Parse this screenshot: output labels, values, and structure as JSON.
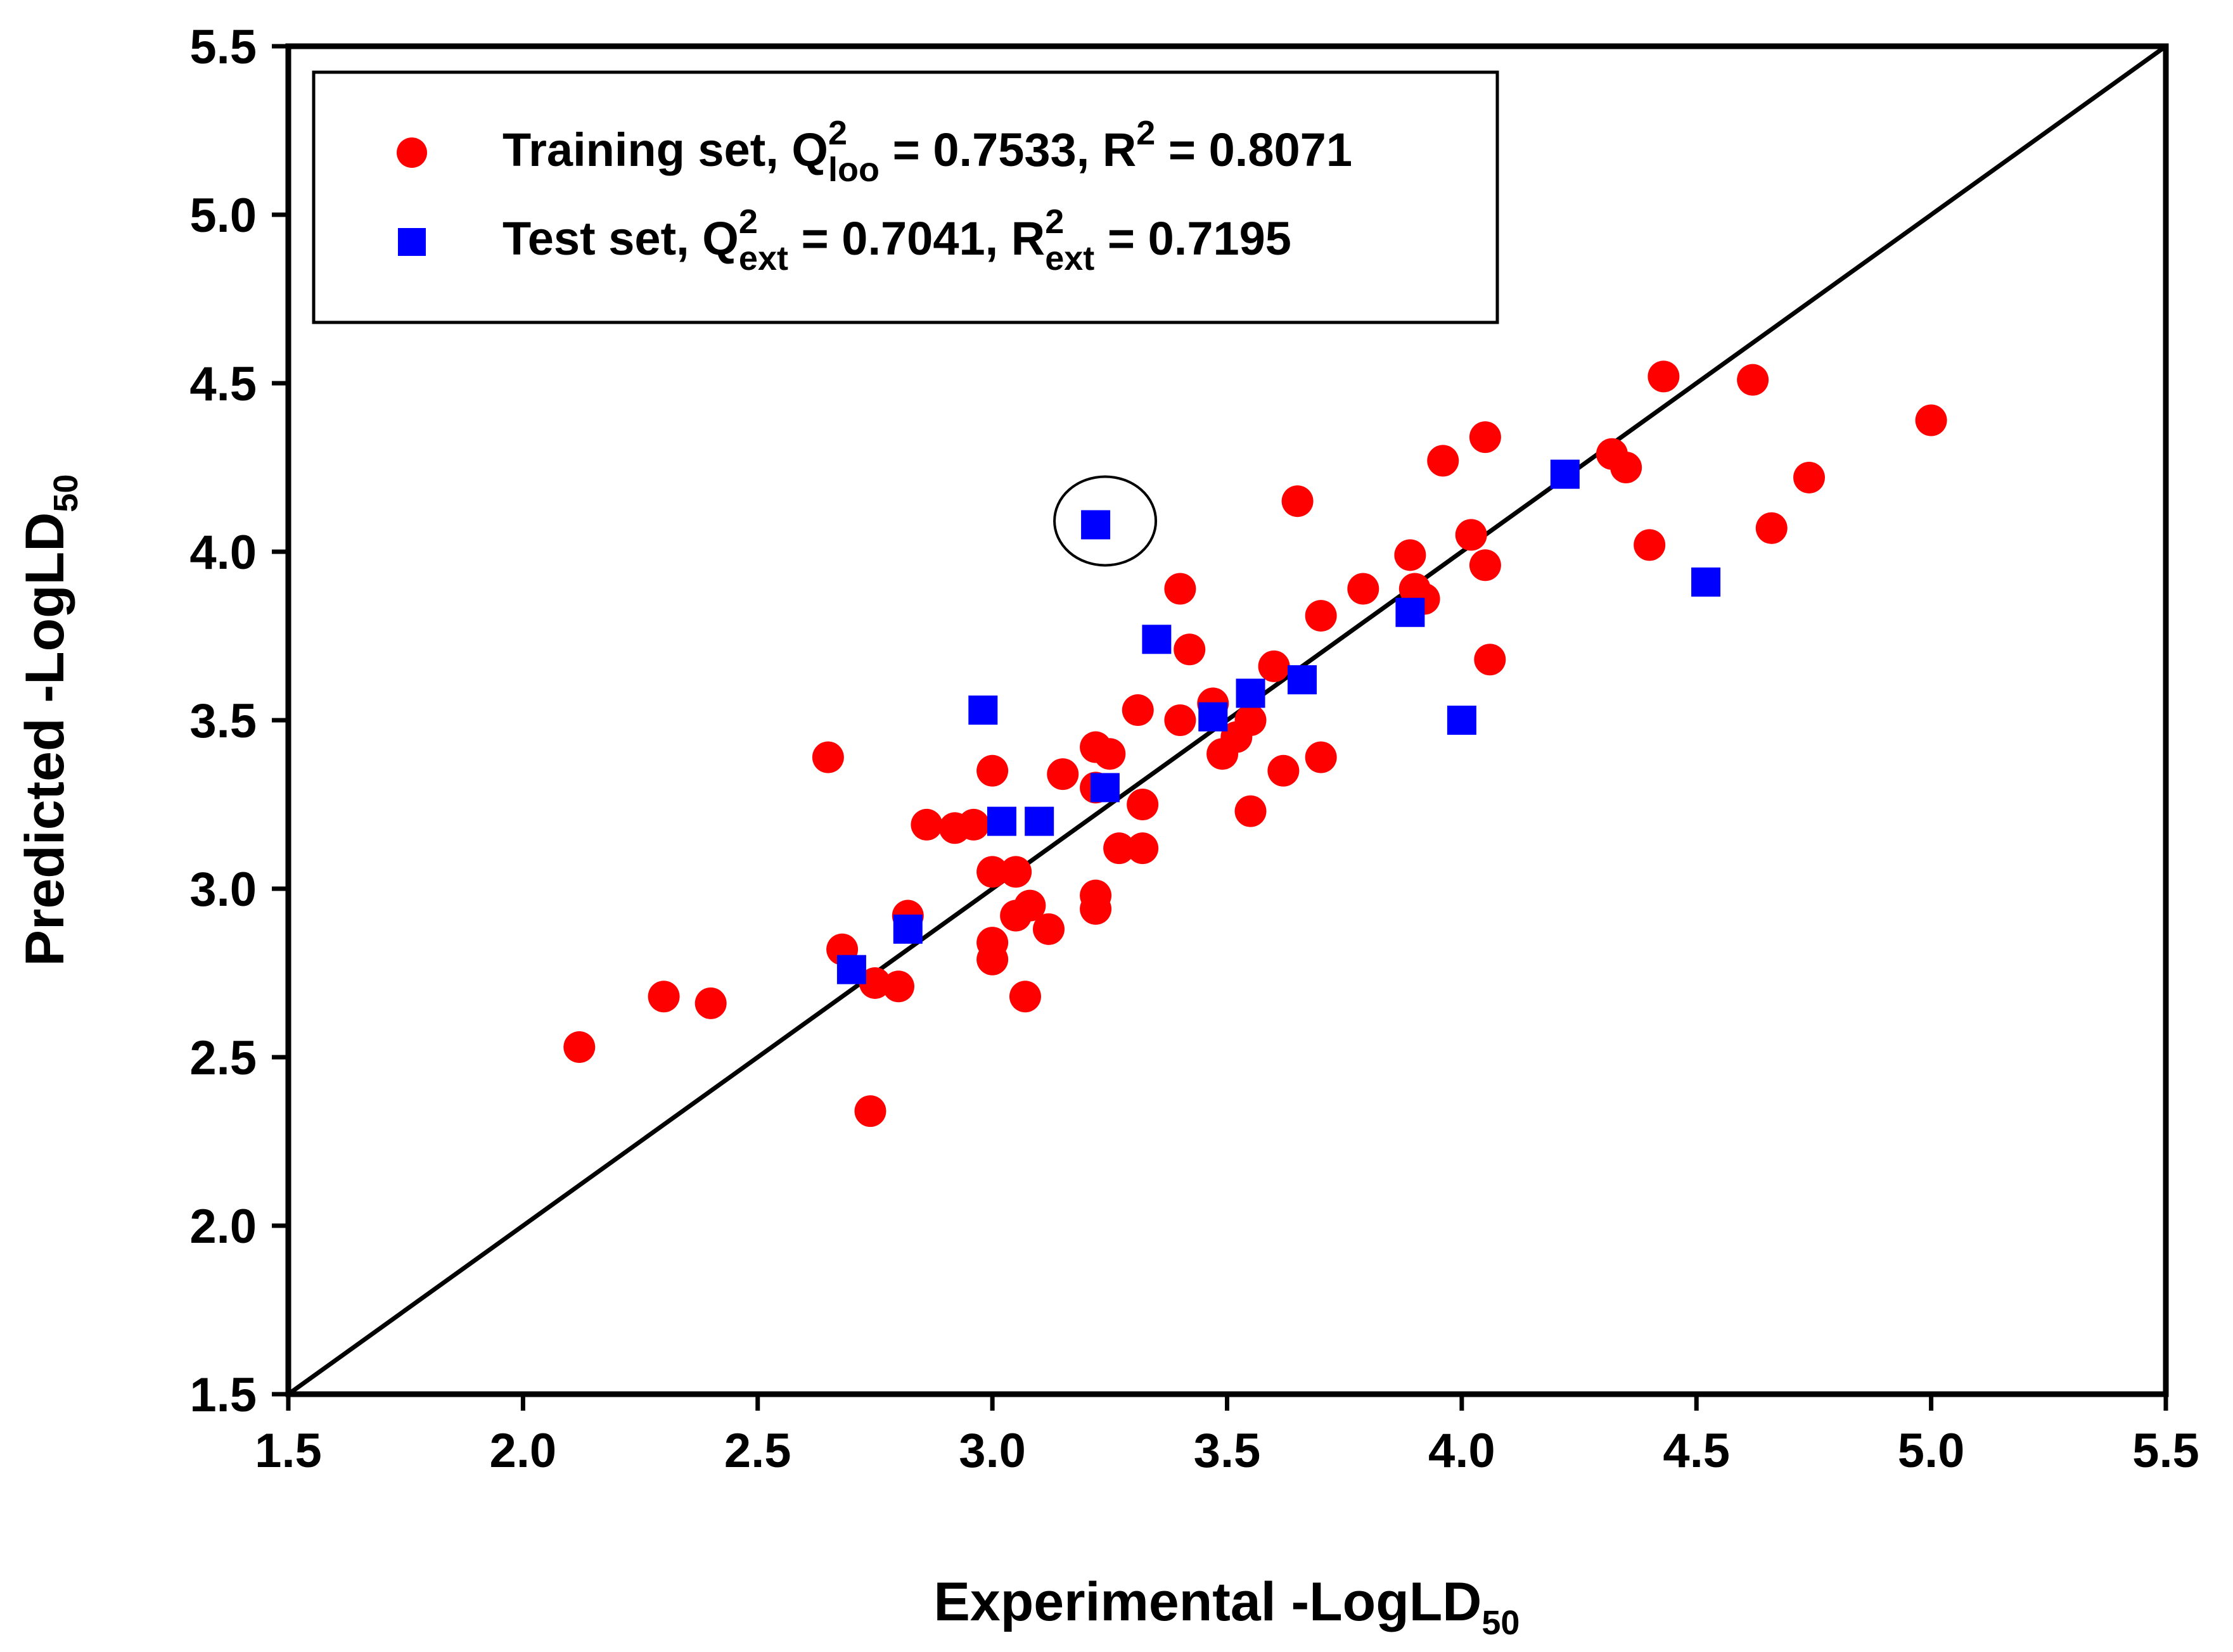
{
  "chart_data": {
    "type": "scatter",
    "xlabel": {
      "main": "Experimental -LogLD",
      "sub": "50"
    },
    "ylabel": {
      "main": "Predicted -LogLD",
      "sub": "50"
    },
    "xlim": [
      1.5,
      5.5
    ],
    "ylim": [
      1.5,
      5.5
    ],
    "xticks": [
      "1.5",
      "2.0",
      "2.5",
      "3.0",
      "3.5",
      "4.0",
      "4.5",
      "5.0",
      "5.5"
    ],
    "yticks": [
      "1.5",
      "2.0",
      "2.5",
      "3.0",
      "3.5",
      "4.0",
      "4.5",
      "5.0",
      "5.5"
    ],
    "grid": false,
    "legend_position": "top-left",
    "reference_line": {
      "x": [
        1.5,
        5.5
      ],
      "y": [
        1.5,
        5.5
      ]
    },
    "highlight": {
      "x": 3.22,
      "y": 4.08
    },
    "series": [
      {
        "legend": {
          "a": "Training set, Q",
          "a_sup": "2",
          "a_sub": "loo",
          "b": " = 0.7533, R",
          "b_sup": "2",
          "c": " = 0.8071"
        },
        "marker": "circle",
        "color": "#ff0000",
        "points": [
          [
            2.12,
            2.53
          ],
          [
            2.3,
            2.68
          ],
          [
            2.4,
            2.66
          ],
          [
            2.65,
            3.39
          ],
          [
            2.68,
            2.82
          ],
          [
            2.74,
            2.34
          ],
          [
            2.75,
            2.72
          ],
          [
            2.8,
            2.71
          ],
          [
            2.82,
            2.92
          ],
          [
            2.86,
            3.19
          ],
          [
            2.92,
            3.18
          ],
          [
            2.96,
            3.19
          ],
          [
            3.0,
            3.35
          ],
          [
            3.0,
            3.05
          ],
          [
            3.0,
            2.84
          ],
          [
            3.0,
            2.79
          ],
          [
            3.05,
            3.05
          ],
          [
            3.05,
            2.92
          ],
          [
            3.07,
            2.68
          ],
          [
            3.08,
            2.95
          ],
          [
            3.12,
            2.88
          ],
          [
            3.15,
            3.34
          ],
          [
            3.22,
            3.42
          ],
          [
            3.22,
            3.3
          ],
          [
            3.22,
            2.98
          ],
          [
            3.22,
            2.94
          ],
          [
            3.25,
            3.4
          ],
          [
            3.27,
            3.12
          ],
          [
            3.31,
            3.53
          ],
          [
            3.32,
            3.25
          ],
          [
            3.32,
            3.12
          ],
          [
            3.4,
            3.89
          ],
          [
            3.4,
            3.5
          ],
          [
            3.42,
            3.71
          ],
          [
            3.47,
            3.55
          ],
          [
            3.49,
            3.4
          ],
          [
            3.52,
            3.45
          ],
          [
            3.55,
            3.5
          ],
          [
            3.55,
            3.23
          ],
          [
            3.6,
            3.66
          ],
          [
            3.62,
            3.35
          ],
          [
            3.65,
            4.15
          ],
          [
            3.7,
            3.81
          ],
          [
            3.7,
            3.39
          ],
          [
            3.79,
            3.89
          ],
          [
            3.89,
            3.99
          ],
          [
            3.9,
            3.89
          ],
          [
            3.92,
            3.86
          ],
          [
            3.96,
            4.27
          ],
          [
            4.02,
            4.05
          ],
          [
            4.05,
            4.34
          ],
          [
            4.05,
            3.96
          ],
          [
            4.06,
            3.68
          ],
          [
            4.32,
            4.29
          ],
          [
            4.35,
            4.25
          ],
          [
            4.4,
            4.02
          ],
          [
            4.43,
            4.52
          ],
          [
            4.62,
            4.51
          ],
          [
            4.66,
            4.07
          ],
          [
            4.74,
            4.22
          ],
          [
            5.0,
            4.39
          ]
        ]
      },
      {
        "legend": {
          "a": "Test set, Q",
          "a_sup": "2",
          "a_sub": "ext",
          "b": " = 0.7041, R",
          "b_sup": "2",
          "b_sub": "ext",
          "c": " = 0.7195"
        },
        "marker": "square",
        "color": "#0000ff",
        "points": [
          [
            2.7,
            2.76
          ],
          [
            2.82,
            2.88
          ],
          [
            2.98,
            3.53
          ],
          [
            3.02,
            3.2
          ],
          [
            3.1,
            3.2
          ],
          [
            3.22,
            4.08
          ],
          [
            3.24,
            3.3
          ],
          [
            3.35,
            3.74
          ],
          [
            3.47,
            3.51
          ],
          [
            3.55,
            3.58
          ],
          [
            3.66,
            3.62
          ],
          [
            3.89,
            3.82
          ],
          [
            4.0,
            3.5
          ],
          [
            4.22,
            4.23
          ],
          [
            4.52,
            3.91
          ]
        ]
      }
    ]
  }
}
